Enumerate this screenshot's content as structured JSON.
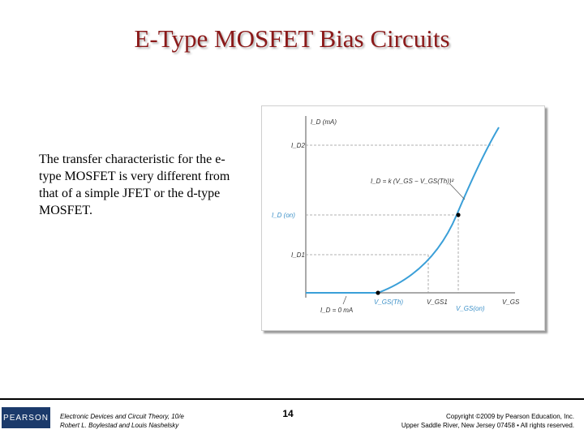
{
  "slide": {
    "title": "E-Type MOSFET Bias Circuits",
    "body": "The transfer characteristic for the e-type MOSFET is very different from that of a simple JFET or the d-type MOSFET."
  },
  "figure": {
    "y_axis_label": "I_D (mA)",
    "x_axis_label": "V_GS",
    "equation": "I_D = k (V_GS − V_GS(Th))²",
    "id2_label": "I_D2",
    "idon_label": "I_D (on)",
    "id1_label": "I_D1",
    "zero_label": "I_D = 0 mA",
    "vgsth_label": "V_GS(Th)",
    "vgs1_label": "V_GS1",
    "vgson_label": "V_GS(on)",
    "vgs_label": "V_GS",
    "curve_color": "#3a9fd8"
  },
  "footer": {
    "logo_text": "PEARSON",
    "book_title": "Electronic Devices and Circuit Theory, 10/e",
    "authors": "Robert L. Boylestad and Louis Nashelsky",
    "page_number": "14",
    "copyright_line1": "Copyright ©2009 by Pearson Education, Inc.",
    "copyright_line2": "Upper Saddle River, New Jersey 07458 • All rights reserved."
  }
}
